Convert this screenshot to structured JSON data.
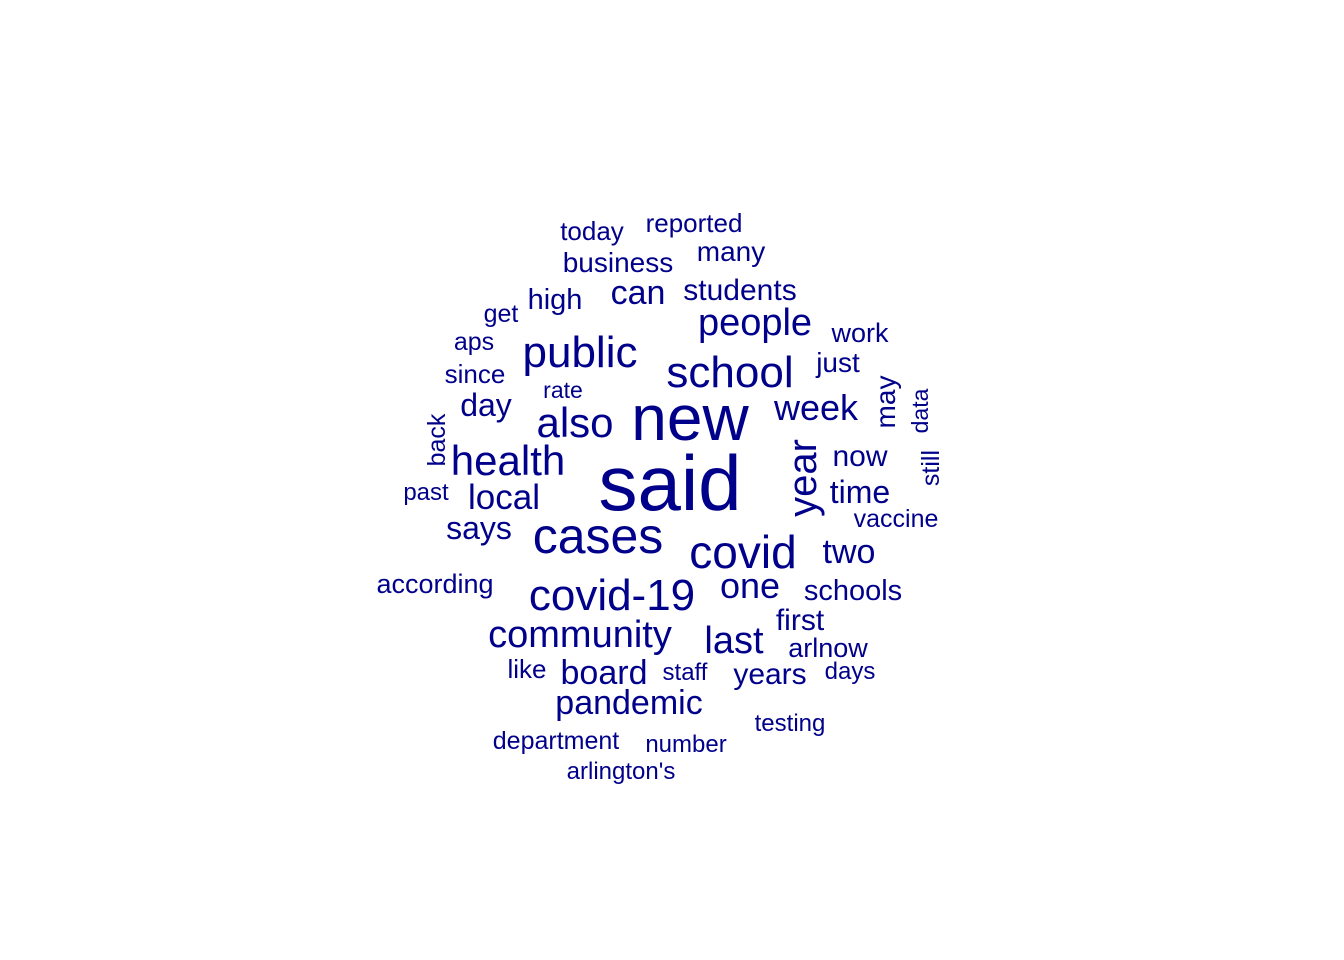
{
  "color": "#00008B",
  "words": [
    {
      "text": "said"
    },
    {
      "text": "new"
    },
    {
      "text": "cases"
    },
    {
      "text": "covid"
    },
    {
      "text": "covid-19"
    },
    {
      "text": "public"
    },
    {
      "text": "school"
    },
    {
      "text": "year"
    },
    {
      "text": "health"
    },
    {
      "text": "also"
    },
    {
      "text": "community"
    },
    {
      "text": "people"
    },
    {
      "text": "week"
    },
    {
      "text": "last"
    },
    {
      "text": "one"
    },
    {
      "text": "local"
    },
    {
      "text": "pandemic"
    },
    {
      "text": "board"
    },
    {
      "text": "can"
    },
    {
      "text": "day"
    },
    {
      "text": "says"
    },
    {
      "text": "two"
    },
    {
      "text": "time"
    },
    {
      "text": "now"
    },
    {
      "text": "students"
    },
    {
      "text": "years"
    },
    {
      "text": "schools"
    },
    {
      "text": "first"
    },
    {
      "text": "business"
    },
    {
      "text": "high"
    },
    {
      "text": "many"
    },
    {
      "text": "arlnow"
    },
    {
      "text": "may"
    },
    {
      "text": "just"
    },
    {
      "text": "according"
    },
    {
      "text": "work"
    },
    {
      "text": "reported"
    },
    {
      "text": "today"
    },
    {
      "text": "since"
    },
    {
      "text": "like"
    },
    {
      "text": "vaccine"
    },
    {
      "text": "department"
    },
    {
      "text": "still"
    },
    {
      "text": "back"
    },
    {
      "text": "aps"
    },
    {
      "text": "get"
    },
    {
      "text": "past"
    },
    {
      "text": "testing"
    },
    {
      "text": "number"
    },
    {
      "text": "arlington's"
    },
    {
      "text": "staff"
    },
    {
      "text": "days"
    },
    {
      "text": "data"
    },
    {
      "text": "rate"
    }
  ]
}
